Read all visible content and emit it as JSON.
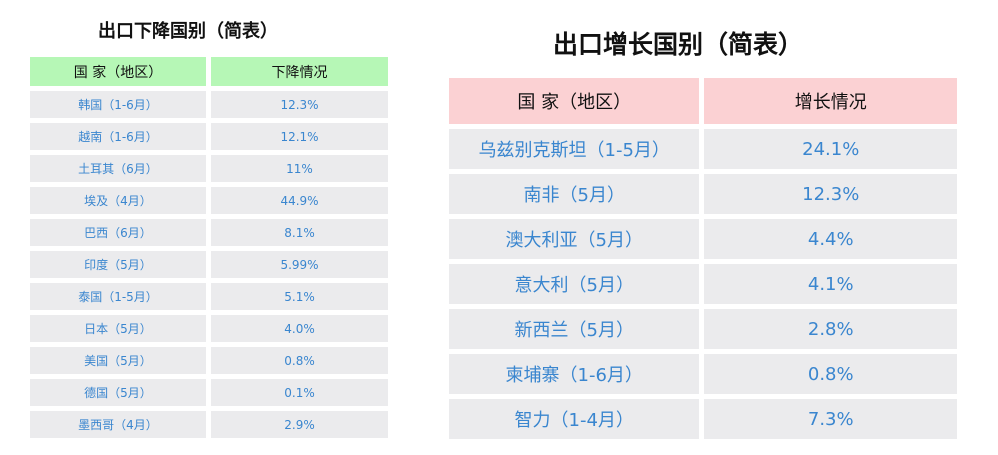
{
  "left": {
    "title": "出口下降国别（简表）",
    "headers": [
      "国 家（地区）",
      "下降情况"
    ],
    "rows": [
      [
        "韩国（1-6月）",
        "12.3%"
      ],
      [
        "越南（1-6月）",
        "12.1%"
      ],
      [
        "土耳其（6月）",
        "11%"
      ],
      [
        "埃及（4月）",
        "44.9%"
      ],
      [
        "巴西（6月）",
        "8.1%"
      ],
      [
        "印度（5月）",
        "5.99%"
      ],
      [
        "泰国（1-5月）",
        "5.1%"
      ],
      [
        "日本（5月）",
        "4.0%"
      ],
      [
        "美国（5月）",
        "0.8%"
      ],
      [
        "德国（5月）",
        "0.1%"
      ],
      [
        "墨西哥（4月）",
        "2.9%"
      ]
    ]
  },
  "right": {
    "title": "出口增长国别（简表）",
    "headers": [
      "国 家（地区）",
      "增长情况"
    ],
    "rows": [
      [
        "乌兹别克斯坦（1-5月）",
        "24.1%"
      ],
      [
        "南非（5月）",
        "12.3%"
      ],
      [
        "澳大利亚（5月）",
        "4.4%"
      ],
      [
        "意大利（5月）",
        "4.1%"
      ],
      [
        "新西兰（5月）",
        "2.8%"
      ],
      [
        "柬埔寨（1-6月）",
        "0.8%"
      ],
      [
        "智力（1-4月）",
        "7.3%"
      ]
    ]
  },
  "colors": {
    "left_header_bg": "#b6f7b6",
    "right_header_bg": "#fbd1d3",
    "cell_bg": "#ebebed",
    "value_text": "#3a86cf"
  }
}
